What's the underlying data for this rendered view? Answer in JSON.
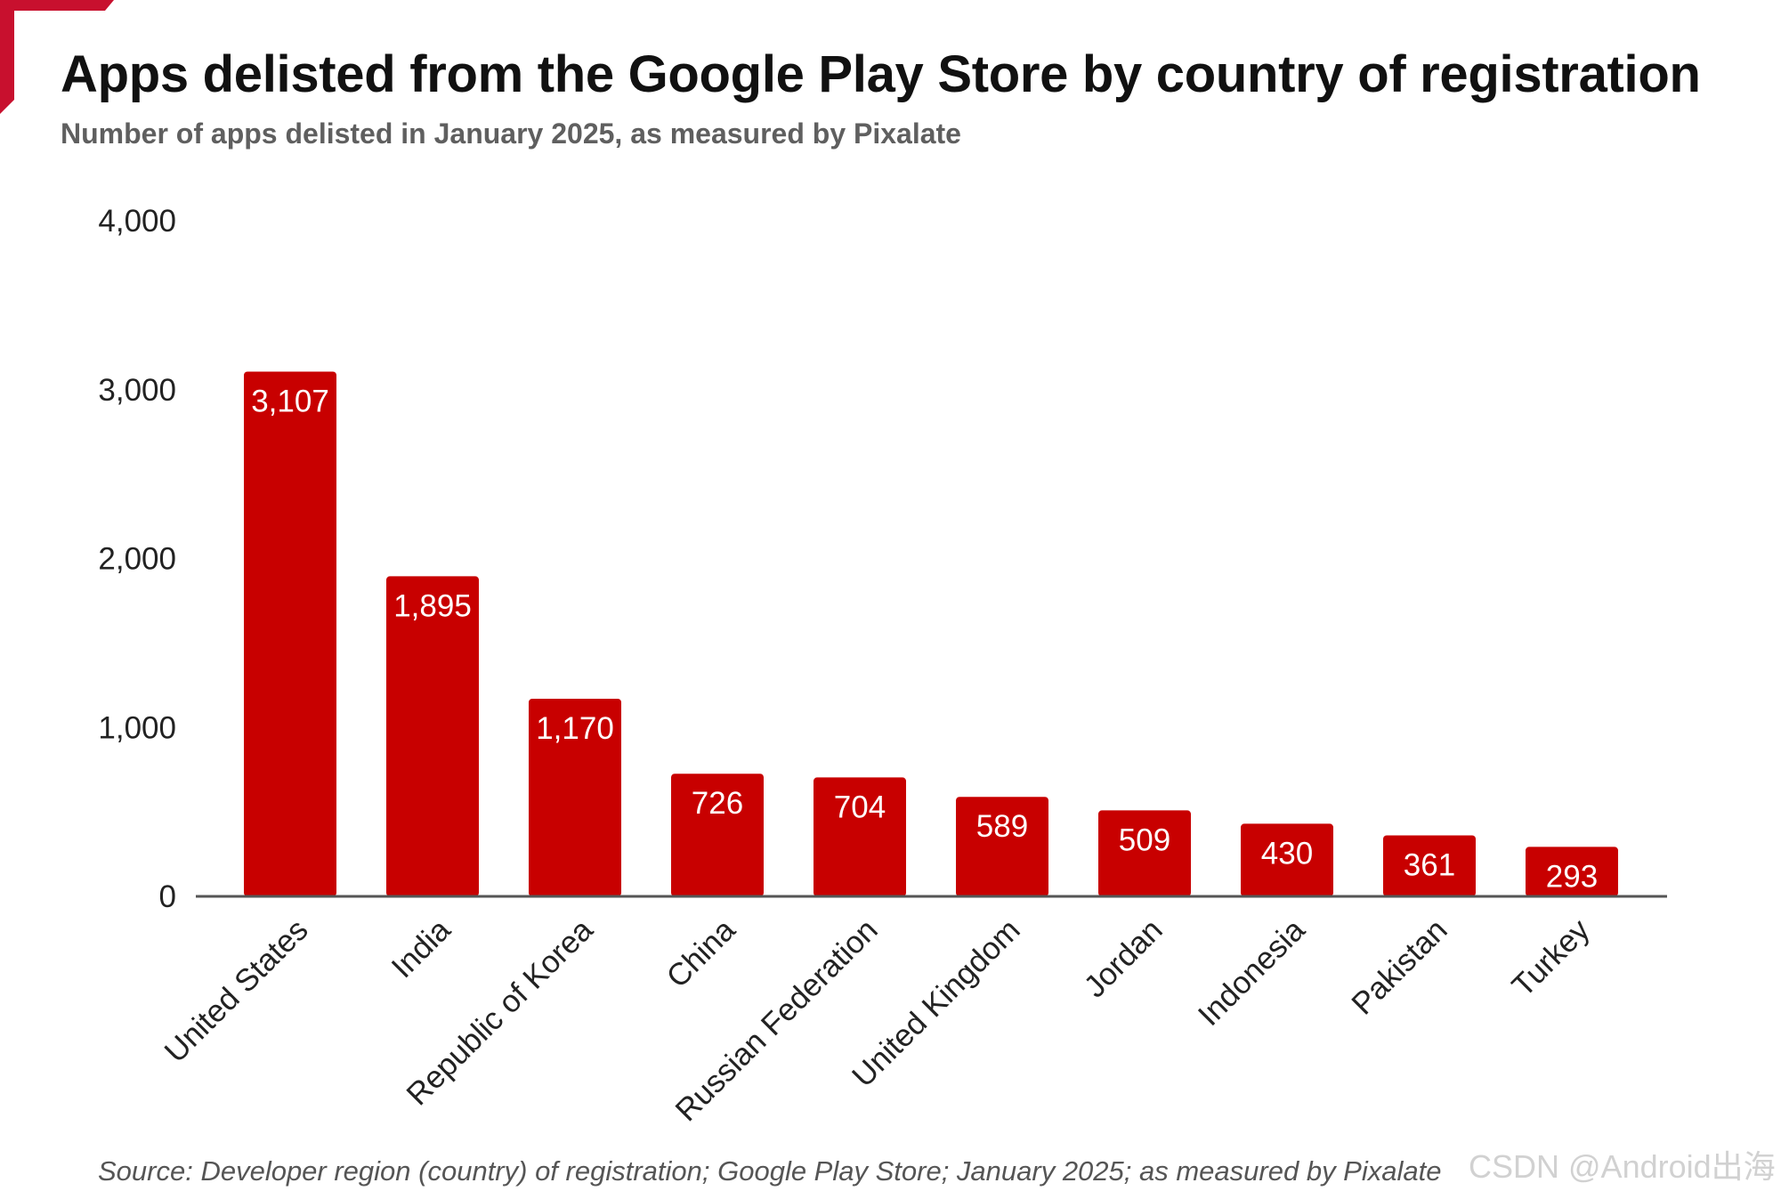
{
  "title": "Apps delisted from the Google Play Store by country of registration",
  "subtitle": "Number of apps delisted in January 2025, as measured by Pixalate",
  "source": "Source: Developer region (country) of registration; Google Play Store; January 2025; as measured by Pixalate",
  "watermark": "CSDN @Android出海",
  "colors": {
    "bar": "#c80000",
    "accent": "#c8102e",
    "axis": "#555555",
    "bar_label": "#ffffff"
  },
  "chart_data": {
    "type": "bar",
    "title": "Apps delisted from the Google Play Store by country of registration",
    "subtitle": "Number of apps delisted in January 2025, as measured by Pixalate",
    "xlabel": "",
    "ylabel": "",
    "ylim": [
      0,
      4000
    ],
    "yticks": [
      0,
      1000,
      2000,
      3000,
      4000
    ],
    "ytick_labels": [
      "0",
      "1,000",
      "2,000",
      "3,000",
      "4,000"
    ],
    "categories": [
      "United States",
      "India",
      "Republic of Korea",
      "China",
      "Russian Federation",
      "United Kingdom",
      "Jordan",
      "Indonesia",
      "Pakistan",
      "Turkey"
    ],
    "values": [
      3107,
      1895,
      1170,
      726,
      704,
      589,
      509,
      430,
      361,
      293
    ],
    "value_labels": [
      "3,107",
      "1,895",
      "1,170",
      "726",
      "704",
      "589",
      "509",
      "430",
      "361",
      "293"
    ],
    "grid": false,
    "legend": "none"
  }
}
